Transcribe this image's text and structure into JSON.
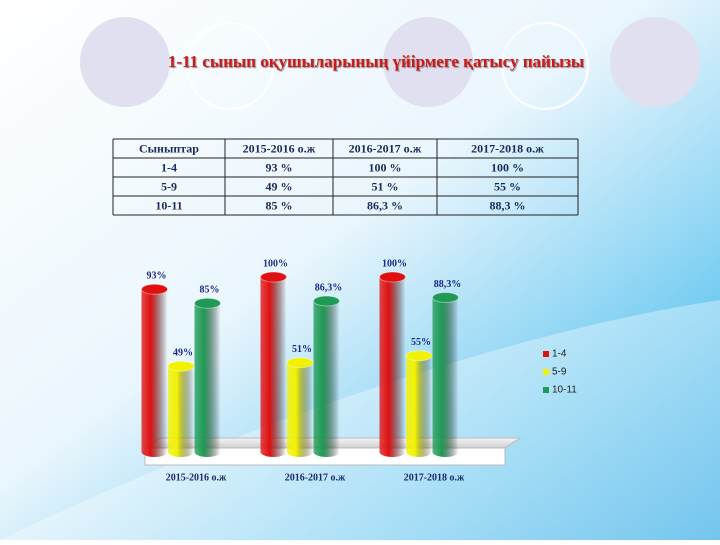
{
  "title": "1-11 сынып оқушыларының  үйірмеге қатысу пайызы",
  "table": {
    "header": [
      "Сыныптар",
      "2015-2016 о.ж",
      "2016-2017 о.ж",
      "2017-2018 о.ж"
    ],
    "rows": [
      [
        "1-4",
        "93 %",
        "100 %",
        "100 %"
      ],
      [
        "5-9",
        "49 %",
        "51 %",
        "55 %"
      ],
      [
        "10-11",
        "85 %",
        "86,3 %",
        "88,3 %"
      ]
    ]
  },
  "chart_data": {
    "type": "bar",
    "categories": [
      "2015-2016 о.ж",
      "2016-2017 о.ж",
      "2017-2018 о.ж"
    ],
    "series": [
      {
        "name": "1-4",
        "color": "#e01010",
        "values": [
          93,
          100,
          100
        ],
        "value_labels": [
          "93%",
          "100%",
          "100%"
        ]
      },
      {
        "name": "5-9",
        "color": "#f2f200",
        "values": [
          49,
          51,
          55
        ],
        "value_labels": [
          "49%",
          "51%",
          "55%"
        ]
      },
      {
        "name": "10-11",
        "color": "#1f9a55",
        "values": [
          85,
          86.3,
          88.3
        ],
        "value_labels": [
          "85%",
          "86,3%",
          "88,3%"
        ]
      }
    ],
    "legend": "right"
  }
}
